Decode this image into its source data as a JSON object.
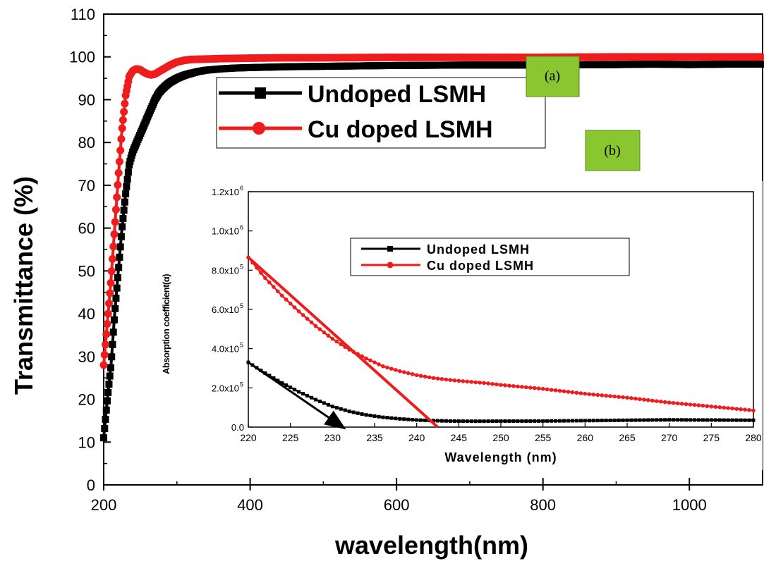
{
  "chart_data": [
    {
      "type": "line",
      "xlabel": "wavelength(nm)",
      "ylabel": "Transmittance (%)",
      "xlim": [
        200,
        1100
      ],
      "ylim": [
        0,
        110
      ],
      "xticks": [
        "200",
        "400",
        "600",
        "800",
        "1000"
      ],
      "yticks": [
        "0",
        "10",
        "20",
        "30",
        "40",
        "50",
        "60",
        "70",
        "80",
        "90",
        "100",
        "110"
      ],
      "legend_placement": "top-center",
      "series": [
        {
          "name": "Undoped LSMH",
          "color": "#000000",
          "marker": "square",
          "x": [
            200,
            205,
            210,
            215,
            220,
            225,
            230,
            235,
            240,
            245,
            250,
            255,
            260,
            265,
            270,
            275,
            280,
            285,
            290,
            300,
            310,
            320,
            330,
            340,
            360,
            380,
            400,
            450,
            500,
            600,
            700,
            800,
            900,
            950,
            1000,
            1050,
            1100
          ],
          "y": [
            11,
            20,
            28,
            40,
            50,
            60,
            68,
            75,
            78,
            80,
            82,
            84,
            86,
            88,
            90,
            91.5,
            92.5,
            93.3,
            94,
            95,
            95.7,
            96.2,
            96.6,
            96.9,
            97.2,
            97.4,
            97.5,
            97.7,
            97.8,
            98,
            98.1,
            98.1,
            98.2,
            98.3,
            98.2,
            98.3,
            98.3
          ]
        },
        {
          "name": "Cu doped LSMH",
          "color": "#ee1c1c",
          "marker": "circle",
          "x": [
            200,
            205,
            210,
            215,
            220,
            225,
            230,
            235,
            240,
            245,
            250,
            255,
            260,
            265,
            270,
            275,
            280,
            290,
            300,
            310,
            320,
            340,
            360,
            400,
            450,
            500,
            600,
            700,
            800,
            900,
            1000,
            1100
          ],
          "y": [
            28,
            38,
            48,
            60,
            72,
            83,
            91,
            95.5,
            96.8,
            97.2,
            97,
            96.4,
            96,
            95.8,
            96,
            96.5,
            97,
            98,
            98.8,
            99.2,
            99.4,
            99.5,
            99.6,
            99.7,
            99.8,
            99.8,
            99.9,
            99.9,
            99.9,
            100,
            100,
            100
          ]
        }
      ],
      "annotations": [
        "(a)",
        "(b)"
      ]
    },
    {
      "type": "line",
      "xlabel": "Wavelength (nm)",
      "ylabel": "Absorption coefficient(α)",
      "xlim": [
        220,
        280
      ],
      "ylim": [
        0,
        1200000
      ],
      "xticks": [
        "220",
        "225",
        "230",
        "235",
        "240",
        "245",
        "250",
        "255",
        "260",
        "265",
        "270",
        "275",
        "280"
      ],
      "yticks": [
        {
          "mantissa": "0.0",
          "exp": ""
        },
        {
          "mantissa": "2.0x10",
          "exp": "5"
        },
        {
          "mantissa": "4.0x10",
          "exp": "5"
        },
        {
          "mantissa": "6.0x10",
          "exp": "5"
        },
        {
          "mantissa": "8.0x10",
          "exp": "5"
        },
        {
          "mantissa": "1.0x10",
          "exp": "6"
        },
        {
          "mantissa": "1.2x10",
          "exp": "6"
        }
      ],
      "legend_placement": "top-center",
      "series": [
        {
          "name": "Undoped LSMH",
          "color": "#000000",
          "marker": "square",
          "x": [
            220,
            222,
            224,
            226,
            228,
            230,
            232,
            234,
            236,
            238,
            240,
            242,
            244,
            246,
            248,
            250,
            255,
            260,
            265,
            270,
            275,
            280
          ],
          "y": [
            330000,
            275000,
            225000,
            180000,
            140000,
            105000,
            80000,
            62000,
            50000,
            42000,
            36000,
            33000,
            31000,
            30000,
            30000,
            30500,
            31000,
            33000,
            35000,
            37000,
            36000,
            35000
          ]
        },
        {
          "name": "Cu doped LSMH",
          "color": "#ee1c1c",
          "marker": "circle",
          "x": [
            220,
            222,
            224,
            226,
            228,
            230,
            232,
            234,
            236,
            238,
            240,
            242,
            244,
            246,
            248,
            250,
            255,
            260,
            265,
            270,
            275,
            280
          ],
          "y": [
            865000,
            760000,
            670000,
            590000,
            515000,
            450000,
            395000,
            350000,
            310000,
            285000,
            265000,
            250000,
            240000,
            232000,
            225000,
            215000,
            195000,
            170000,
            150000,
            125000,
            105000,
            85000
          ]
        }
      ],
      "tangent_lines": [
        {
          "series": "Cu doped LSMH",
          "color": "#ee1c1c",
          "from": [
            220,
            865000
          ],
          "to": [
            242.5,
            0
          ]
        },
        {
          "series": "Undoped LSMH",
          "color": "#000000",
          "from": [
            220,
            330000
          ],
          "to": [
            231.2,
            0
          ],
          "arrow": true
        }
      ]
    }
  ]
}
